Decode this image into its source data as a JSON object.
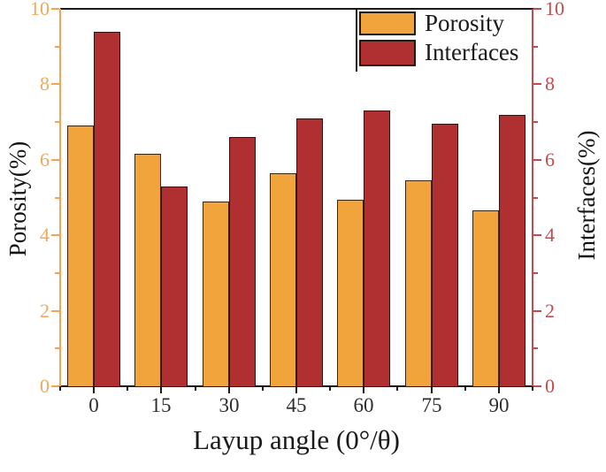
{
  "chart_data": {
    "type": "bar",
    "categories": [
      "0",
      "15",
      "30",
      "45",
      "60",
      "75",
      "90"
    ],
    "series": [
      {
        "name": "Porosity",
        "axis": "left",
        "color": "#F2A43C",
        "edge_color": "#3A2410",
        "values": [
          6.9,
          6.15,
          4.9,
          5.65,
          4.95,
          5.45,
          4.65
        ]
      },
      {
        "name": "Interfaces",
        "axis": "right",
        "color": "#B02F30",
        "edge_color": "#351112",
        "values": [
          9.4,
          5.3,
          6.6,
          7.1,
          7.3,
          6.95,
          7.2
        ]
      }
    ],
    "xlabel": "Layup angle (0°/θ)",
    "ylabel_left": "Porosity(%)",
    "ylabel_right": "Interfaces(%)",
    "ylim": [
      0,
      10
    ],
    "yticks_major": [
      0,
      2,
      4,
      6,
      8,
      10
    ],
    "yticks_minor": [
      1,
      3,
      5,
      7,
      9
    ],
    "grid": false,
    "legend": {
      "position": "top-right",
      "labels": [
        "Porosity",
        "Interfaces"
      ]
    },
    "colors": {
      "left_axis": "#F2A552",
      "left_tick_label": "#EFA959",
      "right_axis": "#C8494B",
      "right_tick_label": "#C8494B",
      "frame": "#1B1B1B",
      "x_tick_label": "#2D2D2D",
      "background": "#FFFFFF"
    }
  }
}
